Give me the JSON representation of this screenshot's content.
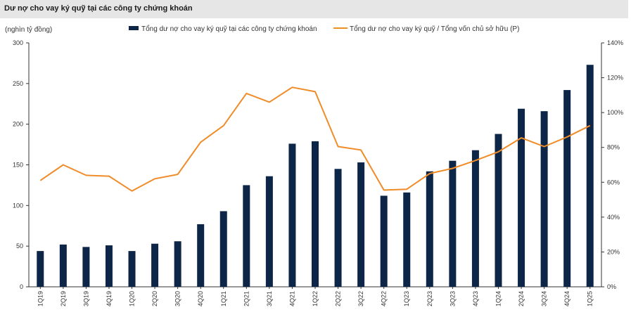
{
  "chart_data": {
    "type": "bar",
    "title": "Dư nợ cho vay ký quỹ tại các công ty chứng khoán",
    "ylabel": "(nghìn tỷ đồng)",
    "categories": [
      "1Q19",
      "2Q19",
      "3Q19",
      "4Q19",
      "1Q20",
      "2Q20",
      "3Q20",
      "4Q20",
      "1Q21",
      "2Q21",
      "3Q21",
      "4Q21",
      "1Q22",
      "2Q22",
      "3Q22",
      "4Q22",
      "1Q23",
      "2Q23",
      "3Q23",
      "4Q23",
      "1Q24",
      "2Q24",
      "3Q24",
      "4Q24",
      "1Q25"
    ],
    "ylim": [
      0,
      300
    ],
    "yticks": [
      "0",
      "50",
      "100",
      "150",
      "200",
      "250",
      "300"
    ],
    "y2lim": [
      0,
      140
    ],
    "y2ticks": [
      "0%",
      "20%",
      "40%",
      "60%",
      "80%",
      "100%",
      "120%",
      "140%"
    ],
    "legend_position": "top",
    "series": [
      {
        "name": "Tổng dư nợ cho vay ký quỹ tại các công ty chứng khoán",
        "type": "bar",
        "axis": "left",
        "color": "#0d2547",
        "values": [
          44,
          52,
          49,
          51,
          44,
          53,
          56,
          77,
          93,
          125,
          136,
          176,
          179,
          145,
          153,
          112,
          116,
          142,
          155,
          168,
          188,
          219,
          216,
          242,
          273
        ]
      },
      {
        "name": "Tổng dư nợ cho vay ký quỹ / Tổng vốn chủ sở hữu (P)",
        "type": "line",
        "axis": "right",
        "color": "#f08c28",
        "values": [
          61,
          70,
          64,
          63.5,
          55,
          62,
          64.5,
          83,
          92.5,
          111,
          106,
          114.5,
          112,
          80.5,
          78.5,
          55.5,
          56,
          65,
          68,
          72.5,
          77.5,
          85.5,
          80.5,
          86,
          92.5
        ]
      }
    ]
  }
}
